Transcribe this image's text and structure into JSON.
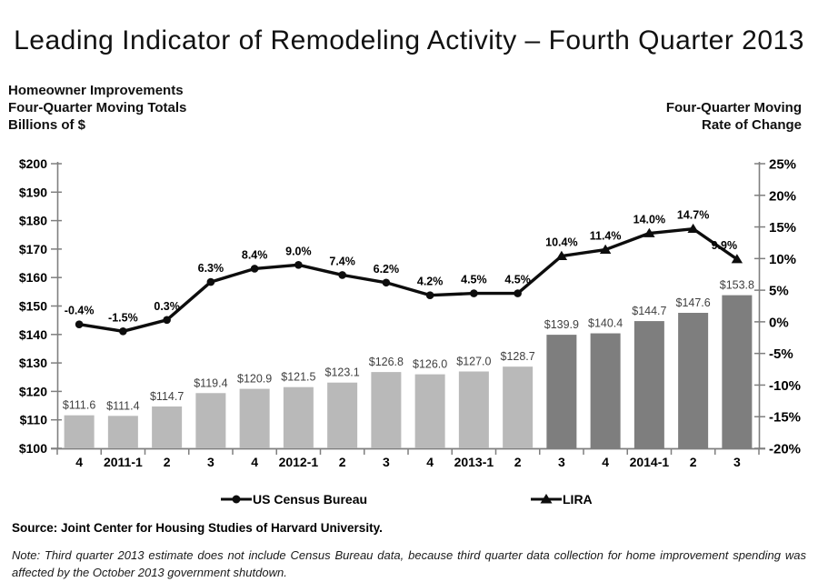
{
  "title": "Leading Indicator of Remodeling Activity – Fourth Quarter 2013",
  "left_header": {
    "line1": "Homeowner Improvements",
    "line2": "Four-Quarter Moving Totals",
    "line3": "Billions of $"
  },
  "right_header": {
    "line1": "Four-Quarter Moving",
    "line2": "Rate of Change"
  },
  "legend": [
    {
      "label": "US Census Bureau",
      "marker": "circle"
    },
    {
      "label": "LIRA",
      "marker": "triangle"
    }
  ],
  "source": "Source: Joint Center for Housing Studies of Harvard University.",
  "note": "Note: Third quarter 2013 estimate does not include Census Bureau data, because third quarter data collection for home improvement spending was affected by the October 2013 government shutdown.",
  "colors": {
    "bar_light": "#b9b9b9",
    "bar_dark": "#7e7e7e",
    "line": "#0d0d0d",
    "axis": "#7f7f7f",
    "bar_label": "#3f3f3f",
    "text": "#000000"
  },
  "chart_data": {
    "type": "bar+line",
    "categories": [
      "4",
      "2011-1",
      "2",
      "3",
      "4",
      "2012-1",
      "2",
      "3",
      "4",
      "2013-1",
      "2",
      "3",
      "4",
      "2014-1",
      "2",
      "3"
    ],
    "series": [
      {
        "name": "Homeowner Improvements Four-Quarter Moving Totals (Billions of $)",
        "type": "bar",
        "axis": "left",
        "values": [
          111.6,
          111.4,
          114.7,
          119.4,
          120.9,
          121.5,
          123.1,
          126.8,
          126.0,
          127.0,
          128.7,
          139.9,
          140.4,
          144.7,
          147.6,
          153.8
        ],
        "labels": [
          "$111.6",
          "$111.4",
          "$114.7",
          "$119.4",
          "$120.9",
          "$121.5",
          "$123.1",
          "$126.8",
          "$126.0",
          "$127.0",
          "$128.7",
          "$139.9",
          "$140.4",
          "$144.7",
          "$147.6",
          "$153.8"
        ],
        "style_split_index": 11,
        "split_meaning": "indices 0-10 light gray = US Census Bureau actuals, 11-15 dark gray = LIRA estimates"
      },
      {
        "name": "Four-Quarter Moving Rate of Change (%)",
        "type": "line",
        "axis": "right",
        "values": [
          -0.4,
          -1.5,
          0.3,
          6.3,
          8.4,
          9.0,
          7.4,
          6.2,
          4.2,
          4.5,
          4.5,
          10.4,
          11.4,
          14.0,
          14.7,
          9.9
        ],
        "labels": [
          "-0.4%",
          "-1.5%",
          "0.3%",
          "6.3%",
          "8.4%",
          "9.0%",
          "7.4%",
          "6.2%",
          "4.2%",
          "4.5%",
          "4.5%",
          "10.4%",
          "11.4%",
          "14.0%",
          "14.7%",
          "9.9%"
        ],
        "marker_split_index": 11,
        "split_meaning": "circle markers = US Census Bureau, triangle markers = LIRA"
      }
    ],
    "left_axis": {
      "min": 100,
      "max": 200,
      "step": 10,
      "tick_labels": [
        "$100",
        "$110",
        "$120",
        "$130",
        "$140",
        "$150",
        "$160",
        "$170",
        "$180",
        "$190",
        "$200"
      ]
    },
    "right_axis": {
      "min": -20,
      "max": 25,
      "step": 5,
      "tick_labels": [
        "-20%",
        "-15%",
        "-10%",
        "-5%",
        "0%",
        "5%",
        "10%",
        "15%",
        "20%",
        "25%"
      ]
    },
    "grid": false,
    "legend_position": "bottom"
  }
}
